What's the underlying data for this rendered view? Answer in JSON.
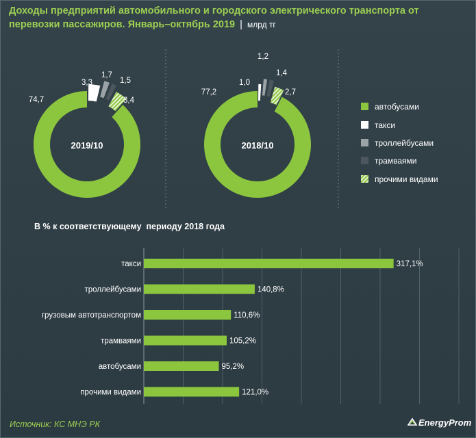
{
  "header": {
    "title": "Доходы предприятий автомобильного и городского электрического транспорта от перевозки пассажиров. Январь–октябрь 2019",
    "separator": "|",
    "unit": "млрд тг"
  },
  "legend": [
    {
      "label": "автобусами",
      "color": "#8cc63f",
      "pattern": "solid"
    },
    {
      "label": "такси",
      "color": "#ffffff",
      "pattern": "solid"
    },
    {
      "label": "троллейбусами",
      "color": "#9ba3a6",
      "pattern": "solid"
    },
    {
      "label": "трамваями",
      "color": "#4b575c",
      "pattern": "solid"
    },
    {
      "label": "прочими видами",
      "color": "#b9dc8a",
      "pattern": "hatched"
    }
  ],
  "bar_section_title": "В % к соответствующему  периоду 2018 года",
  "source": "Источник: КС МНЭ РК",
  "logo_text": "EnergyProm",
  "colors": {
    "accent": "#9ccf52",
    "bus": "#8cc63f",
    "taxi": "#ffffff",
    "trolleybus": "#9ba3a6",
    "tram": "#4b575c",
    "other": "#b9dc8a",
    "background": "#2f3d44"
  },
  "chart_data": [
    {
      "type": "pie",
      "variant": "donut",
      "center_label": "2019/10",
      "categories": [
        "автобусами",
        "такси",
        "троллейбусами",
        "трамваями",
        "прочими видами"
      ],
      "values": [
        74.7,
        3.3,
        1.7,
        1.5,
        3.4
      ],
      "value_labels": [
        "74,7",
        "3,3",
        "1,7",
        "1,5",
        "3,4"
      ]
    },
    {
      "type": "pie",
      "variant": "donut",
      "center_label": "2018/10",
      "categories": [
        "автобусами",
        "такси",
        "троллейбусами",
        "трамваями",
        "прочими видами"
      ],
      "values": [
        77.2,
        1.0,
        1.2,
        1.4,
        2.7
      ],
      "value_labels": [
        "77,2",
        "1,0",
        "1,2",
        "1,4",
        "2,7"
      ]
    },
    {
      "type": "bar",
      "orientation": "horizontal",
      "title": "В % к соответствующему  периоду 2018 года",
      "categories": [
        "такси",
        "троллейбусами",
        "грузовым автотранспортом",
        "трамваями",
        "автобусами",
        "прочими видами"
      ],
      "values": [
        317.1,
        140.8,
        110.6,
        105.2,
        95.2,
        121.0
      ],
      "value_labels": [
        "317,1%",
        "140,8%",
        "110,6%",
        "105,2%",
        "95,2%",
        "121,0%"
      ],
      "xlim": [
        0,
        400
      ],
      "grid": true
    }
  ]
}
